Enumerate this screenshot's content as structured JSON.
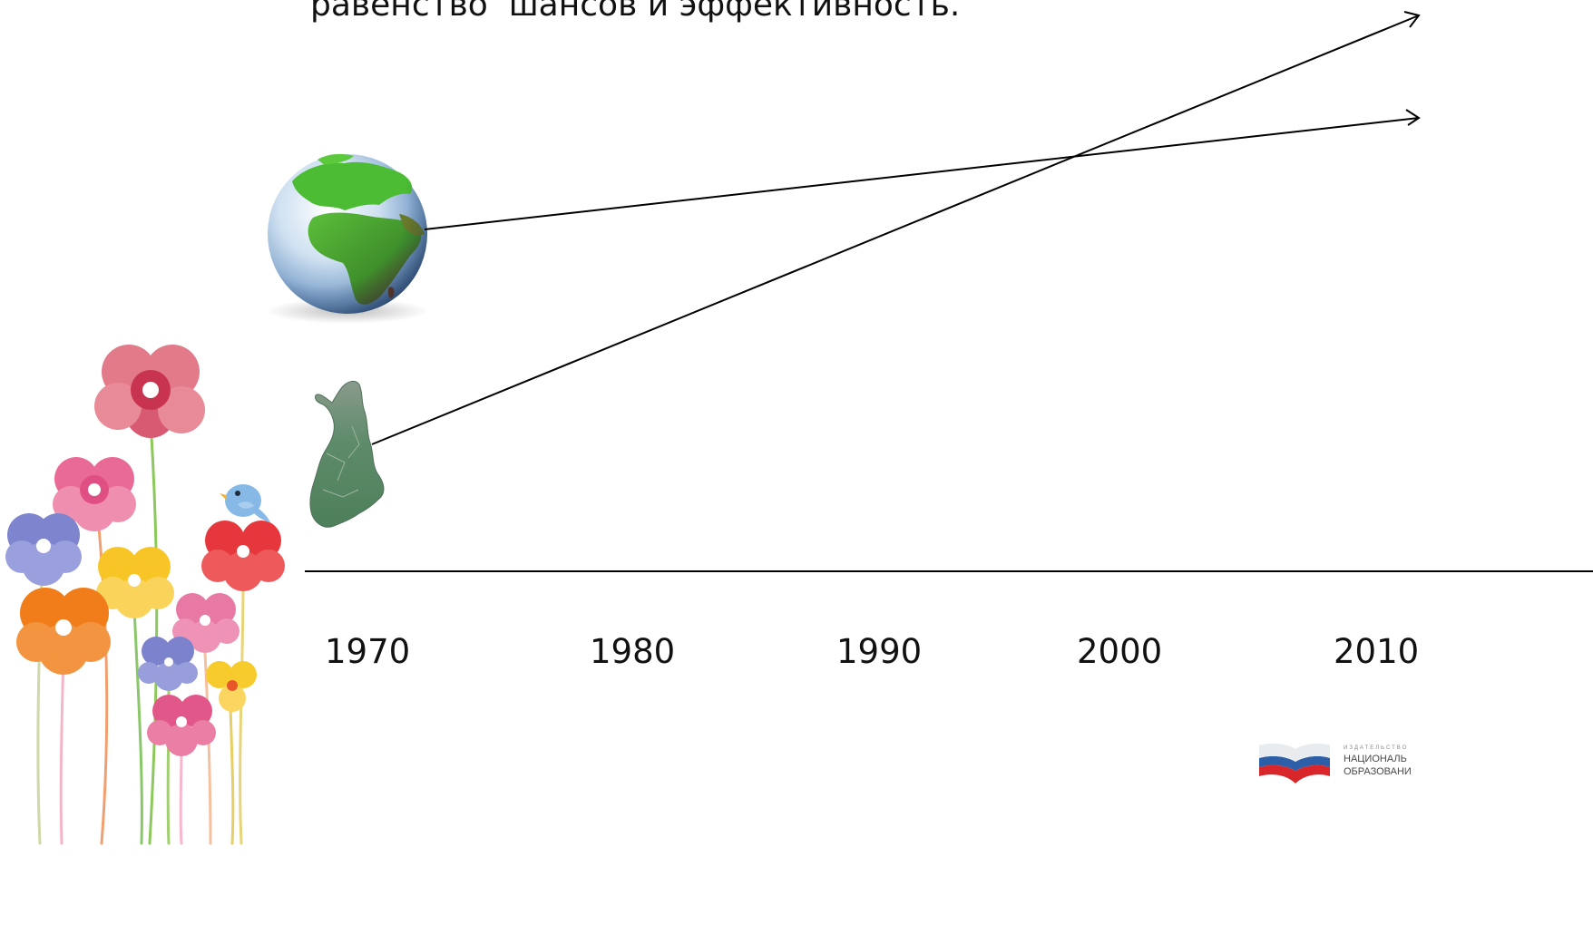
{
  "slide": {
    "heading": "равенство  шансов и эффективность."
  },
  "timeline": {
    "years": [
      "1970",
      "1980",
      "1990",
      "2000",
      "2010"
    ]
  },
  "logo": {
    "line_small": "ИЗДАТЕЛЬСТВО",
    "line1": "НАЦИОНАЛЬ",
    "line2": "ОБРАЗОВАНИ"
  },
  "colors": {
    "text": "#111111",
    "line": "#000000",
    "ocean": "#dceaf6",
    "land": "#4caf32",
    "finland": "#5d8a6a"
  },
  "icons": [
    "globe-icon",
    "finland-map-icon",
    "flowers-illustration",
    "bird-icon",
    "publisher-logo-icon"
  ]
}
